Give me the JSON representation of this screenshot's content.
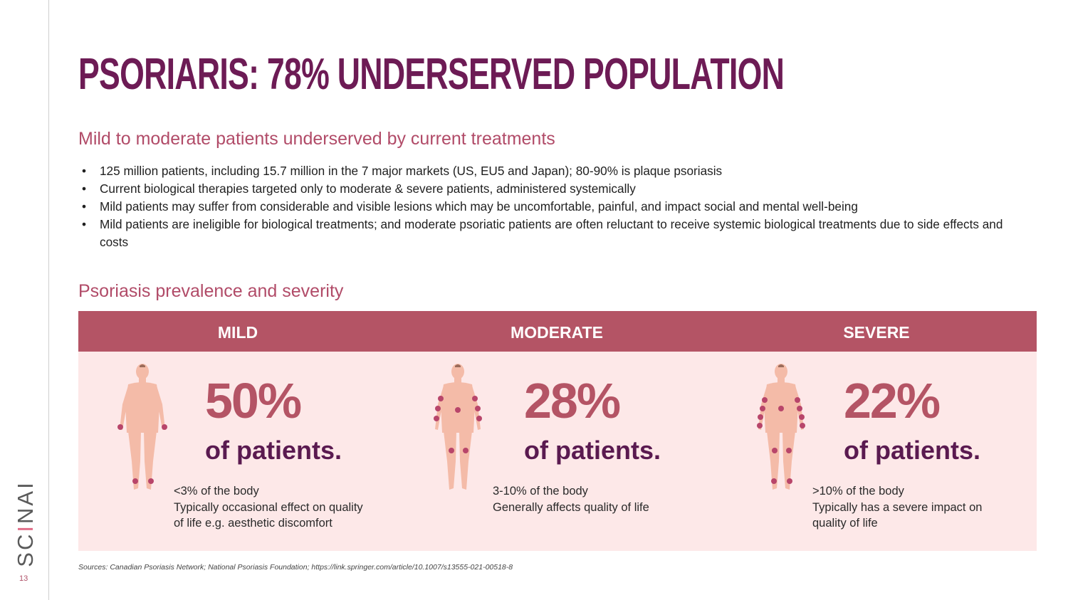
{
  "page": {
    "title": "PSORIARIS: 78% UNDERSERVED POPULATION",
    "page_number": "13",
    "logo_text": "SCINAI"
  },
  "section1": {
    "heading": "Mild to moderate patients underserved by current treatments",
    "bullets": [
      "125 million patients, including 15.7 million in the 7 major markets (US, EU5 and Japan); 80-90% is plaque psoriasis",
      "Current biological therapies targeted only to moderate & severe patients, administered systemically",
      "Mild patients may suffer from considerable and visible lesions which may be uncomfortable, painful, and impact social and mental well-being",
      "Mild patients are ineligible for biological treatments; and moderate psoriatic patients are often reluctant to receive systemic biological treatments due to side effects and costs"
    ]
  },
  "section2": {
    "heading": "Psoriasis prevalence and severity",
    "columns": [
      {
        "label": "MILD",
        "percent": "50%",
        "of_patients": "of patients.",
        "lines": [
          "<3% of the body",
          "Typically occasional effect on quality",
          "of life e.g. aesthetic discomfort"
        ],
        "icon": "body-figure-mild-icon"
      },
      {
        "label": "MODERATE",
        "percent": "28%",
        "of_patients": "of patients.",
        "lines": [
          "3-10% of the body",
          "Generally affects quality of life"
        ],
        "icon": "body-figure-moderate-icon"
      },
      {
        "label": "SEVERE",
        "percent": "22%",
        "of_patients": "of patients.",
        "lines": [
          ">10% of the body",
          "Typically has a severe impact on",
          "quality of life"
        ],
        "icon": "body-figure-severe-icon"
      }
    ]
  },
  "sources": "Sources: Canadian Psoriasis Network; National Psoriasis Foundation; https://link.springer.com/article/10.1007/s13555-021-00518-8",
  "colors": {
    "title": "#6d1b55",
    "accent": "#b45465",
    "panel": "#fde8e8",
    "skin": "#f4bba8",
    "lesion": "#b8456a"
  }
}
